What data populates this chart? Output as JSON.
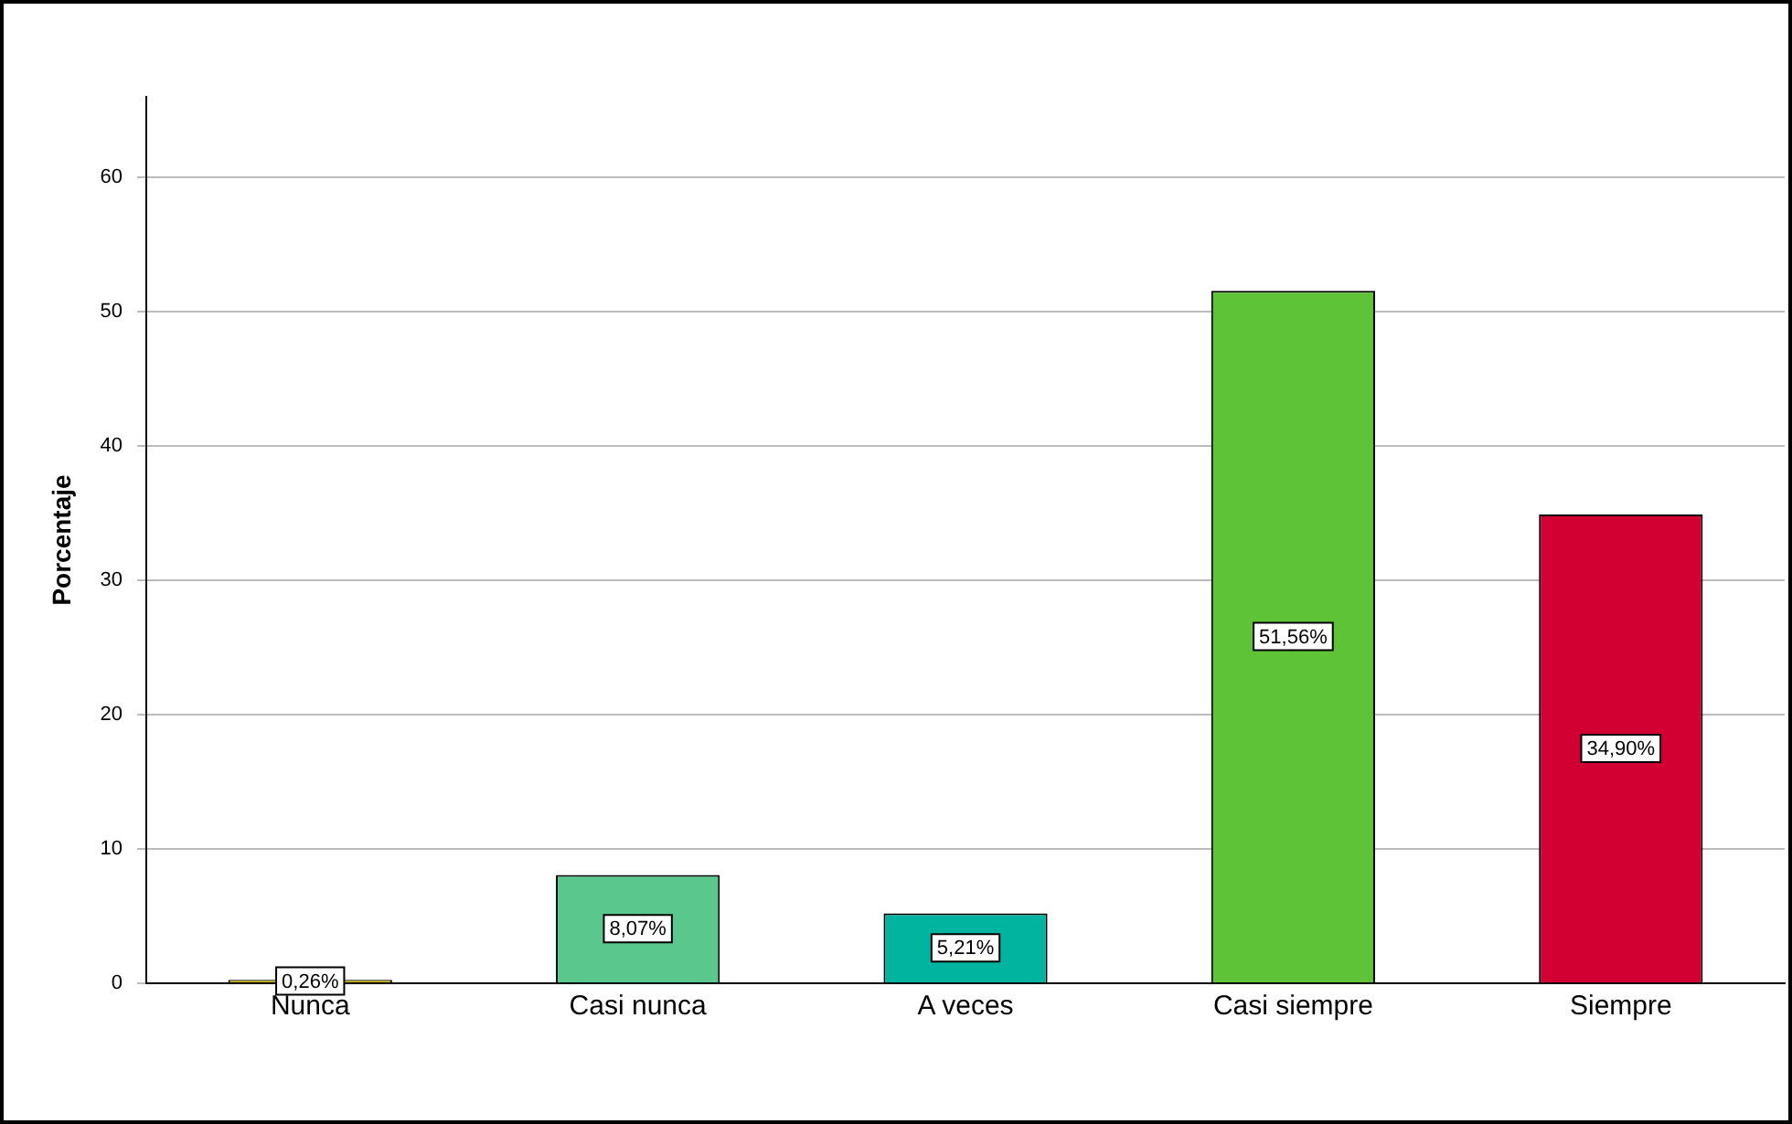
{
  "chart_data": {
    "type": "bar",
    "ylabel": "Porcentaje",
    "categories": [
      "Nunca",
      "Casi nunca",
      "A veces",
      "Casi siempre",
      "Siempre"
    ],
    "values": [
      0.26,
      8.07,
      5.21,
      51.56,
      34.9
    ],
    "colors": [
      "#c8b400",
      "#5ac88c",
      "#00b4a0",
      "#5fc337",
      "#d20032"
    ],
    "value_labels": [
      "0,26%",
      "8,07%",
      "5,21%",
      "51,56%",
      "34,90%"
    ],
    "ylim": [
      0,
      66
    ],
    "yticks": [
      0,
      10,
      20,
      30,
      40,
      50,
      60
    ],
    "grid": "y",
    "legend": false
  }
}
